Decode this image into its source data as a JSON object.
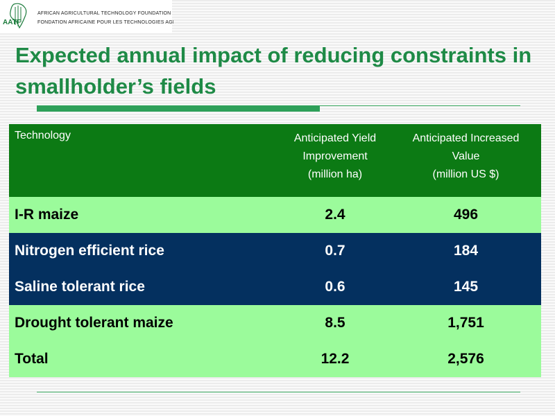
{
  "header": {
    "org_en": "AFRICAN AGRICULTURAL TECHNOLOGY FOUNDATION",
    "org_fr": "FONDATION AFRICAINE POUR LES TECHNOLOGIES AGRICOLES",
    "logo_text": "AATF"
  },
  "title": "Expected annual impact of reducing constraints in smallholder’s fields",
  "table": {
    "col_technology": "Technology",
    "col_yield": [
      "Anticipated Yield",
      "Improvement",
      "(million ha)"
    ],
    "col_value": [
      "Anticipated Increased",
      "Value",
      "(million US $)"
    ],
    "rows": [
      {
        "technology": "I-R maize",
        "yield": "2.4",
        "value": "496"
      },
      {
        "technology": "Nitrogen efficient rice",
        "yield": "0.7",
        "value": "184"
      },
      {
        "technology": "Saline tolerant rice",
        "yield": "0.6",
        "value": "145"
      },
      {
        "technology": "Drought tolerant maize",
        "yield": "8.5",
        "value": "1,751"
      },
      {
        "technology": "Total",
        "yield": "12.2",
        "value": "2,576"
      }
    ]
  },
  "colors": {
    "title_green": "#1e8a46",
    "header_green": "#0c7a14",
    "row_light_green": "#9bfb9b",
    "row_navy": "#04305f"
  }
}
